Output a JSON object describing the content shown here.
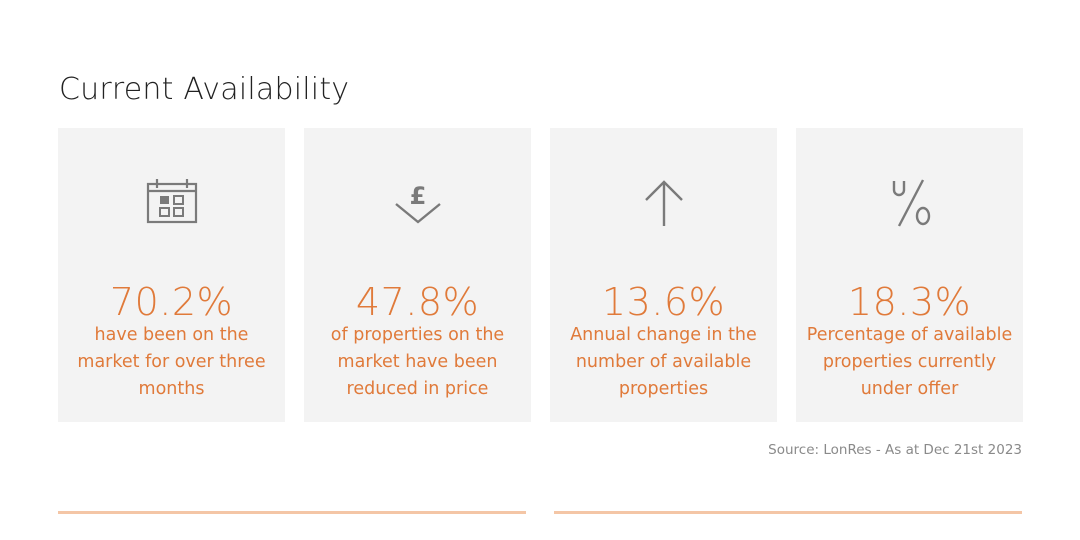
{
  "page": {
    "title": "Current Availability",
    "source": "Source: LonRes - As at Dec 21st 2023"
  },
  "accent_color": "#e07a3a",
  "card_background": "#f3f3f3",
  "rule_color": "#f4c6a6",
  "cards": [
    {
      "icon": "calendar-icon",
      "value": "70.2%",
      "description": "have been on the market for over three months"
    },
    {
      "icon": "pound-down-arrow-icon",
      "value": "47.8%",
      "description": "of properties on the market have been reduced in price"
    },
    {
      "icon": "arrow-up-icon",
      "value": "13.6%",
      "description": "Annual change in the number of available properties"
    },
    {
      "icon": "percent-icon",
      "value": "18.3%",
      "description": "Percentage of available properties currently under offer"
    }
  ]
}
